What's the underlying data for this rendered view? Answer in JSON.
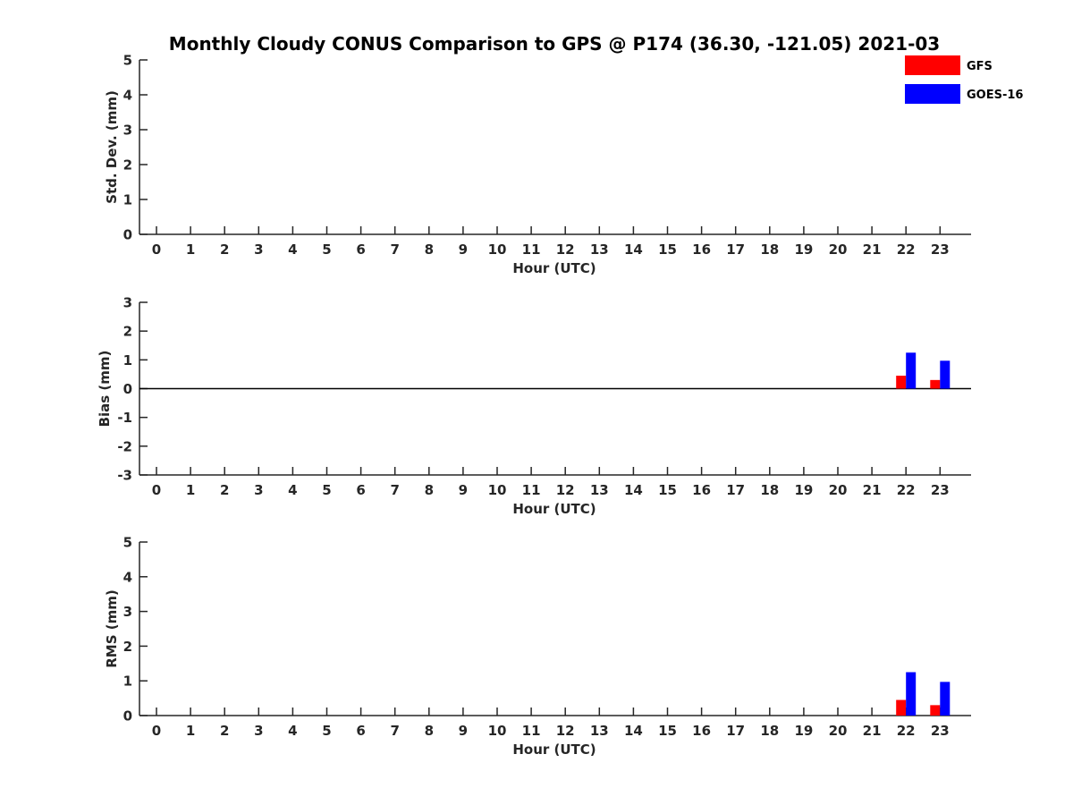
{
  "title": "Monthly Cloudy CONUS Comparison to GPS @ P174 (36.30, -121.05) 2021-03",
  "colors": {
    "GFS": "#ff0000",
    "GOES-16": "#0000ff",
    "axis": "#262626"
  },
  "chart_data": [
    {
      "type": "bar",
      "id": "stddev",
      "title": "Monthly Cloudy CONUS Comparison to GPS @ P174 (36.30, -121.05) 2021-03",
      "xlabel": "Hour (UTC)",
      "ylabel": "Std. Dev. (mm)",
      "ylim": [
        0,
        5
      ],
      "yticks": [
        0,
        1,
        2,
        3,
        4,
        5
      ],
      "yticklabels": [
        "0",
        "1",
        "2",
        "3",
        "4",
        "5"
      ],
      "categories": [
        "0",
        "1",
        "2",
        "3",
        "4",
        "5",
        "6",
        "7",
        "8",
        "9",
        "10",
        "11",
        "12",
        "13",
        "14",
        "15",
        "16",
        "17",
        "18",
        "19",
        "20",
        "21",
        "22",
        "23"
      ],
      "zero_line": false,
      "series": [
        {
          "name": "GFS",
          "values": [
            null,
            null,
            null,
            null,
            null,
            null,
            null,
            null,
            null,
            null,
            null,
            null,
            null,
            null,
            null,
            null,
            null,
            null,
            null,
            null,
            null,
            null,
            null,
            null
          ]
        },
        {
          "name": "GOES-16",
          "values": [
            null,
            null,
            null,
            null,
            null,
            null,
            null,
            null,
            null,
            null,
            null,
            null,
            null,
            null,
            null,
            null,
            null,
            null,
            null,
            null,
            null,
            null,
            null,
            null
          ]
        }
      ],
      "legend": {
        "position": "top-right",
        "entries": [
          "GFS",
          "GOES-16"
        ]
      }
    },
    {
      "type": "bar",
      "id": "bias",
      "title": "",
      "xlabel": "Hour (UTC)",
      "ylabel": "Bias (mm)",
      "ylim": [
        -3,
        3
      ],
      "yticks": [
        -3,
        -2,
        -1,
        0,
        1,
        2,
        3
      ],
      "yticklabels": [
        "-3",
        "-2",
        "-1",
        "0",
        "1",
        "2",
        "3"
      ],
      "categories": [
        "0",
        "1",
        "2",
        "3",
        "4",
        "5",
        "6",
        "7",
        "8",
        "9",
        "10",
        "11",
        "12",
        "13",
        "14",
        "15",
        "16",
        "17",
        "18",
        "19",
        "20",
        "21",
        "22",
        "23"
      ],
      "zero_line": true,
      "series": [
        {
          "name": "GFS",
          "values": [
            null,
            null,
            null,
            null,
            null,
            null,
            null,
            null,
            null,
            null,
            null,
            null,
            null,
            null,
            null,
            null,
            null,
            null,
            null,
            null,
            null,
            null,
            0.45,
            0.3
          ]
        },
        {
          "name": "GOES-16",
          "values": [
            null,
            null,
            null,
            null,
            null,
            null,
            null,
            null,
            null,
            null,
            null,
            null,
            null,
            null,
            null,
            null,
            null,
            null,
            null,
            null,
            null,
            null,
            1.25,
            0.97
          ]
        }
      ]
    },
    {
      "type": "bar",
      "id": "rms",
      "title": "",
      "xlabel": "Hour (UTC)",
      "ylabel": "RMS (mm)",
      "ylim": [
        0,
        5
      ],
      "yticks": [
        0,
        1,
        2,
        3,
        4,
        5
      ],
      "yticklabels": [
        "0",
        "1",
        "2",
        "3",
        "4",
        "5"
      ],
      "categories": [
        "0",
        "1",
        "2",
        "3",
        "4",
        "5",
        "6",
        "7",
        "8",
        "9",
        "10",
        "11",
        "12",
        "13",
        "14",
        "15",
        "16",
        "17",
        "18",
        "19",
        "20",
        "21",
        "22",
        "23"
      ],
      "zero_line": false,
      "series": [
        {
          "name": "GFS",
          "values": [
            null,
            null,
            null,
            null,
            null,
            null,
            null,
            null,
            null,
            null,
            null,
            null,
            null,
            null,
            null,
            null,
            null,
            null,
            null,
            null,
            null,
            null,
            0.45,
            0.3
          ]
        },
        {
          "name": "GOES-16",
          "values": [
            null,
            null,
            null,
            null,
            null,
            null,
            null,
            null,
            null,
            null,
            null,
            null,
            null,
            null,
            null,
            null,
            null,
            null,
            null,
            null,
            null,
            null,
            1.25,
            0.97
          ]
        }
      ]
    }
  ]
}
